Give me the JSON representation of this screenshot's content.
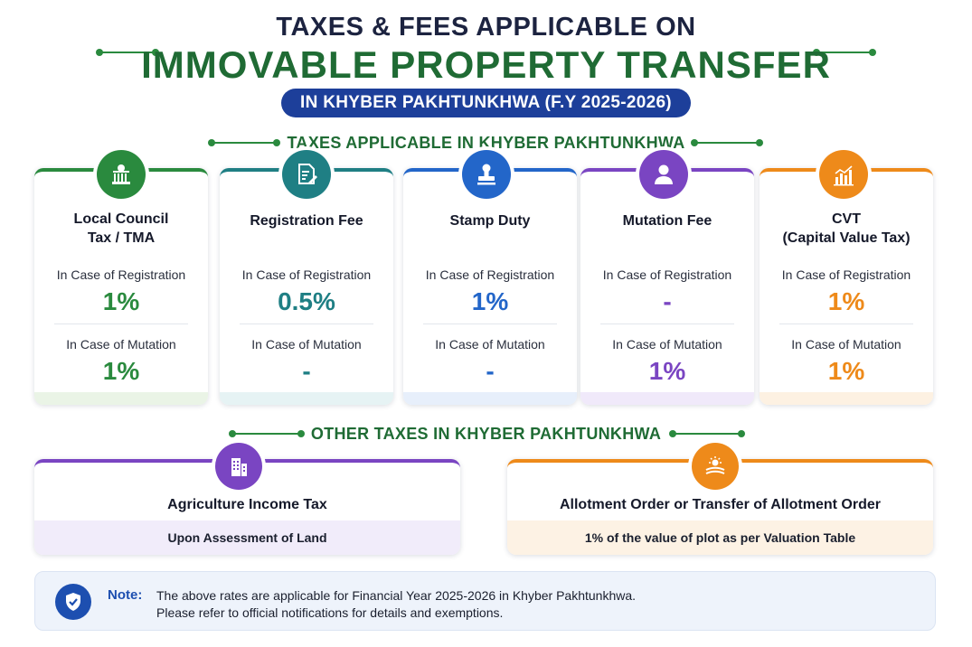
{
  "header": {
    "title_line1": "TAXES & FEES APPLICABLE ON",
    "title_line2": "IMMOVABLE PROPERTY TRANSFER",
    "subtitle": "IN KHYBER PAKHTUNKHWA (F.Y 2025-2026)"
  },
  "taxes_section": {
    "heading": "TAXES APPLICABLE IN KHYBER PAKHTUNKHWA",
    "registration_label": "In Case of Registration",
    "mutation_label": "In Case of Mutation",
    "cards": [
      {
        "title_line1": "Local Council",
        "title_line2": "Tax / TMA",
        "registration": "1%",
        "mutation": "1%",
        "color": "#2a8a3e",
        "tint": "#eaf4e6",
        "icon": "government-building-icon"
      },
      {
        "title_line1": "Registration Fee",
        "title_line2": "",
        "registration": "0.5%",
        "mutation": "-",
        "color": "#1f7f84",
        "tint": "#e6f3f4",
        "icon": "document-pen-icon"
      },
      {
        "title_line1": "Stamp Duty",
        "title_line2": "",
        "registration": "1%",
        "mutation": "-",
        "color": "#2366c9",
        "tint": "#e7effb",
        "icon": "stamp-icon"
      },
      {
        "title_line1": "Mutation Fee",
        "title_line2": "",
        "registration": "-",
        "mutation": "1%",
        "color": "#7a45c2",
        "tint": "#f0e9fa",
        "icon": "person-icon"
      },
      {
        "title_line1": "CVT",
        "title_line2": "(Capital Value Tax)",
        "registration": "1%",
        "mutation": "1%",
        "color": "#ee8a1a",
        "tint": "#fdf1e2",
        "icon": "tax-chart-icon"
      }
    ]
  },
  "other_section": {
    "heading": "OTHER TAXES IN KHYBER PAKHTUNKHWA",
    "cards": [
      {
        "name": "Agriculture Income Tax",
        "detail": "Upon Assessment of Land",
        "color": "#7a45c2",
        "tint": "#f1ecfa",
        "icon": "buildings-icon"
      },
      {
        "name": "Allotment Order or Transfer of Allotment Order",
        "detail": "1% of the value of plot as per Valuation Table",
        "color": "#ee8a1a",
        "tint": "#fdf2e4",
        "icon": "land-sun-icon"
      }
    ]
  },
  "note": {
    "label": "Note:",
    "line1": "The above rates are applicable for Financial Year 2025-2026 in Khyber Pakhtunkhwa.",
    "line2": "Please refer to official notifications for details and exemptions.",
    "icon": "shield-check-icon"
  }
}
